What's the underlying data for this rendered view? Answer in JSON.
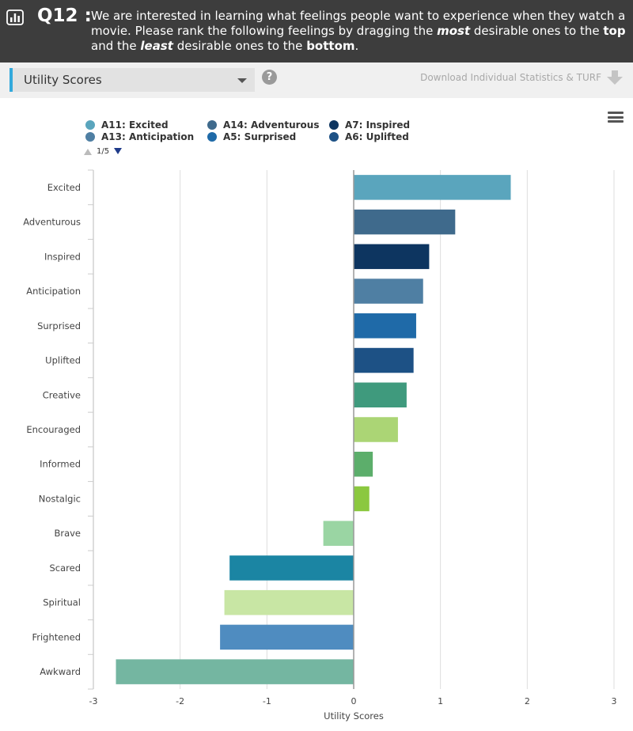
{
  "header": {
    "question_number": "Q12 :",
    "text_before_most": "We are interested in learning what feelings people want to experience when they watch a movie. Please rank the following feelings by dragging the ",
    "most": "most",
    "text_after_most": " desirable ones to the ",
    "top": "top",
    "text_and_the": " and the ",
    "least": "least",
    "text_after_least": " desirable ones to the ",
    "bottom": "bottom",
    "period": "."
  },
  "toolbar": {
    "selected_view": "Utility Scores",
    "help_glyph": "?",
    "download_label": "Download Individual Statistics & TURF"
  },
  "legend": {
    "items": [
      {
        "label": "A11: Excited",
        "color": "#5aa5bd"
      },
      {
        "label": "A14: Adventurous",
        "color": "#3f6a8c"
      },
      {
        "label": "A7: Inspired",
        "color": "#0d3560"
      },
      {
        "label": "A13: Anticipation",
        "color": "#4f7fa3"
      },
      {
        "label": "A5: Surprised",
        "color": "#1f6aa8"
      },
      {
        "label": "A6: Uplifted",
        "color": "#1d5185"
      }
    ],
    "page": "1/5"
  },
  "chart_data": {
    "type": "bar",
    "orientation": "horizontal",
    "xlabel": "Utility Scores",
    "ylabel": "",
    "xlim": [
      -3,
      3
    ],
    "xticks": [
      -3,
      -2,
      -1,
      0,
      1,
      2,
      3
    ],
    "grid": true,
    "legend_position": "top-left",
    "categories": [
      "Excited",
      "Adventurous",
      "Inspired",
      "Anticipation",
      "Surprised",
      "Uplifted",
      "Creative",
      "Encouraged",
      "Informed",
      "Nostalgic",
      "Brave",
      "Scared",
      "Spiritual",
      "Frightened",
      "Awkward"
    ],
    "values": [
      1.81,
      1.17,
      0.87,
      0.8,
      0.72,
      0.69,
      0.61,
      0.51,
      0.22,
      0.18,
      -0.35,
      -1.43,
      -1.49,
      -1.54,
      -2.74
    ],
    "colors": [
      "#5aa5bd",
      "#3f6a8c",
      "#0d3560",
      "#4f7fa3",
      "#1f6aa8",
      "#1d5185",
      "#3f9a7d",
      "#abd575",
      "#5cae6b",
      "#8bc83f",
      "#9ad5a3",
      "#1b85a3",
      "#c8e6a4",
      "#4f8cc0",
      "#74b6a1"
    ]
  }
}
